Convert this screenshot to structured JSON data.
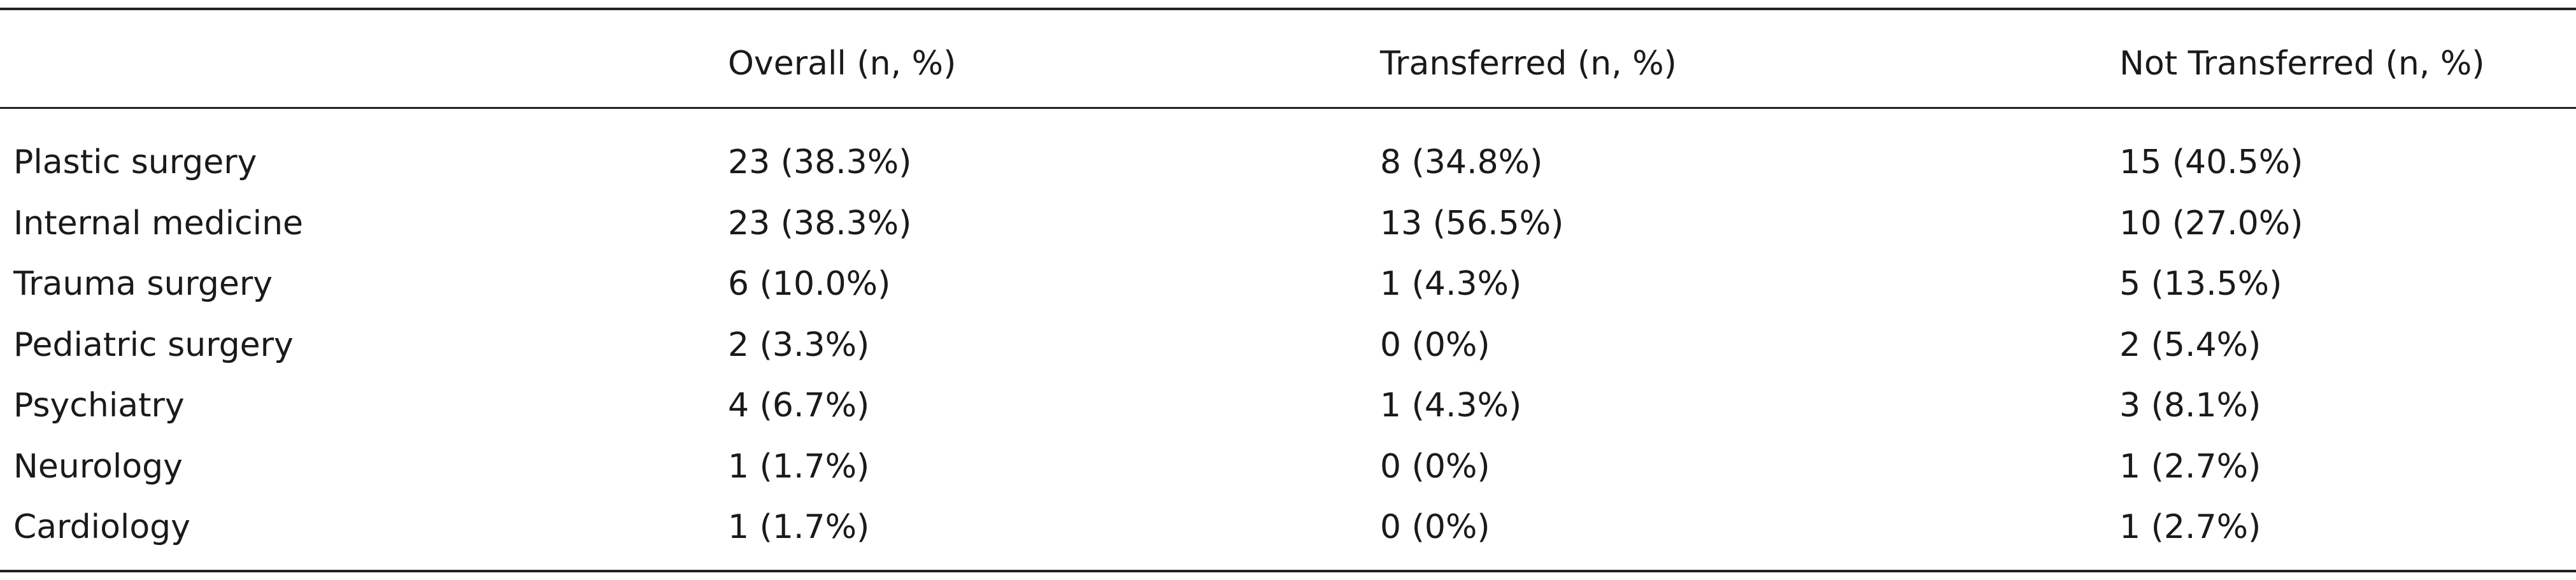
{
  "table": {
    "header": [
      "Overall (n, %)",
      "Transferred (n, %)",
      "Not Transferred (n, %)"
    ],
    "rows": [
      [
        "Plastic surgery",
        "23 (38.3%)",
        "8 (34.8%)",
        "15 (40.5%)"
      ],
      [
        "Internal medicine",
        "23 (38.3%)",
        "13 (56.5%)",
        "10 (27.0%)"
      ],
      [
        "Trauma surgery",
        "6 (10.0%)",
        "1 (4.3%)",
        "5 (13.5%)"
      ],
      [
        "Pediatric surgery",
        "2 (3.3%)",
        "0 (0%)",
        "2 (5.4%)"
      ],
      [
        "Psychiatry",
        "4 (6.7%)",
        "1 (4.3%)",
        "3 (8.1%)"
      ],
      [
        "Neurology",
        "1 (1.7%)",
        "0 (0%)",
        "1 (2.7%)"
      ],
      [
        "Cardiology",
        "1 (1.7%)",
        "0 (0%)",
        "1 (2.7%)"
      ]
    ]
  }
}
